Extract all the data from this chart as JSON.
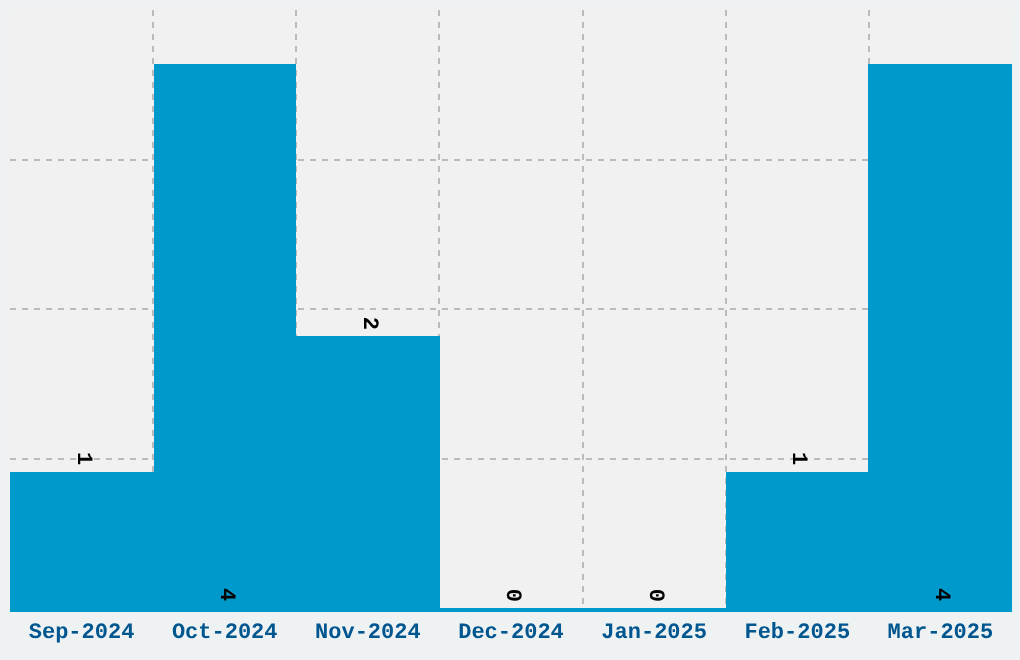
{
  "chart_data": {
    "type": "bar",
    "categories": [
      "Sep-2024",
      "Oct-2024",
      "Nov-2024",
      "Dec-2024",
      "Jan-2025",
      "Feb-2025",
      "Mar-2025"
    ],
    "values": [
      1,
      4,
      2,
      0,
      0,
      1,
      4
    ],
    "color": "#0099cc",
    "data_labels": true,
    "ylim": [
      0,
      4.4
    ],
    "yticks": [
      {
        "value": 1.1,
        "label": null
      },
      {
        "value": 2.2,
        "label": null
      },
      {
        "value": 3.3,
        "label": null
      }
    ],
    "tick_labels": "x",
    "grid": true
  }
}
